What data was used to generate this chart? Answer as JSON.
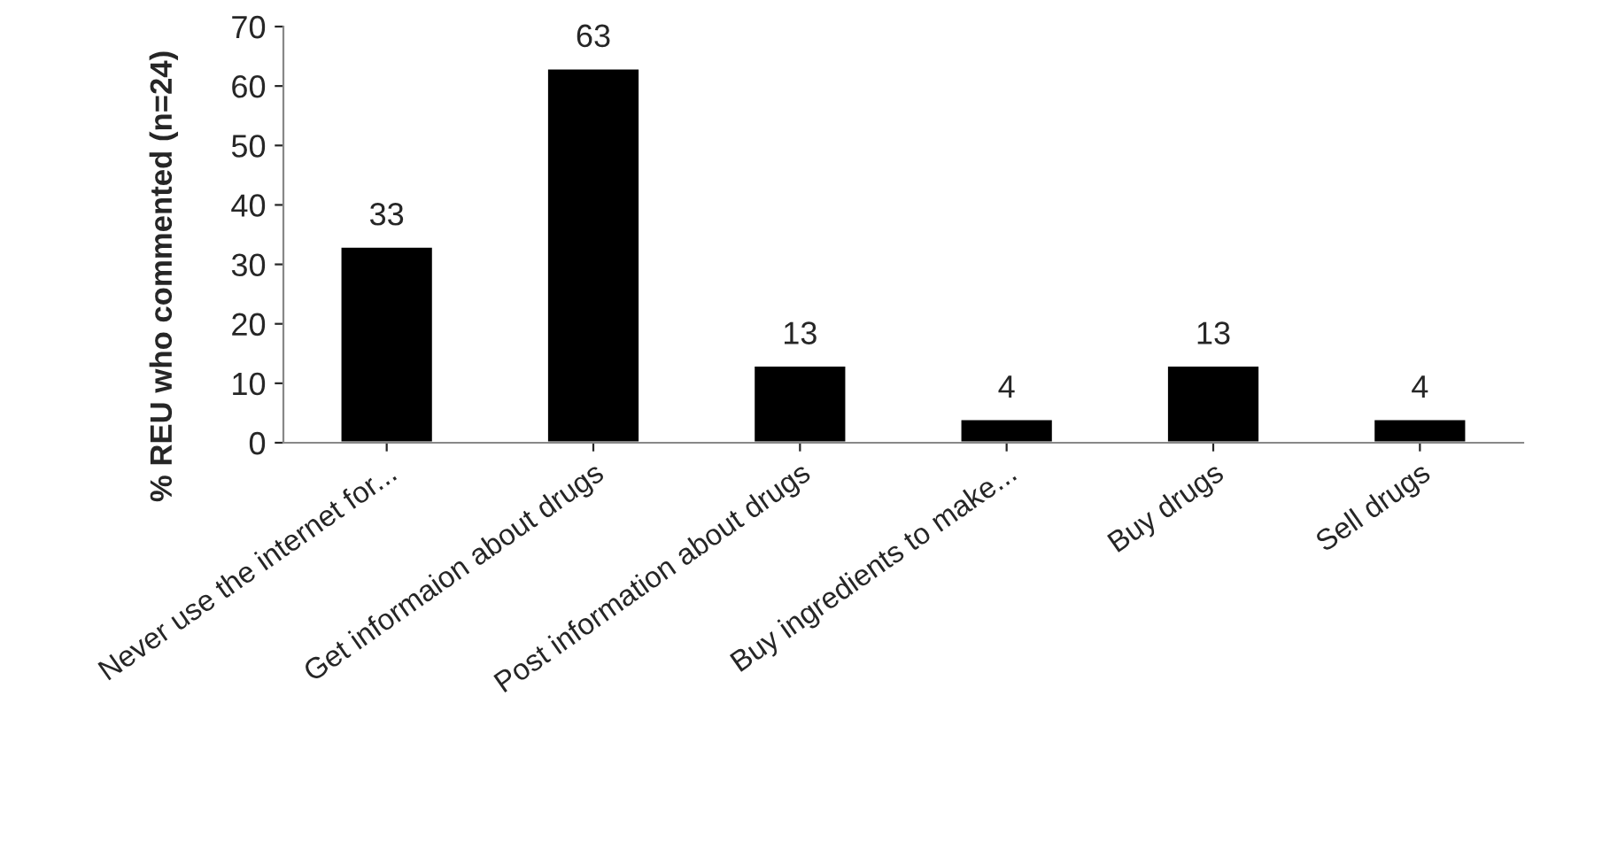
{
  "chart_data": {
    "type": "bar",
    "ylabel": "% REU who commented (n=24)",
    "categories": [
      "Never use the internet for...",
      "Get informaion about drugs",
      "Post information about drugs",
      "Buy ingredients to make...",
      "Buy drugs",
      "Sell drugs"
    ],
    "values": [
      33,
      63,
      13,
      4,
      13,
      4
    ],
    "color": "#000000",
    "ylim": [
      0,
      70
    ],
    "yticks": [
      0,
      10,
      20,
      30,
      40,
      50,
      60,
      70
    ],
    "grid": false,
    "data_labels": true
  }
}
